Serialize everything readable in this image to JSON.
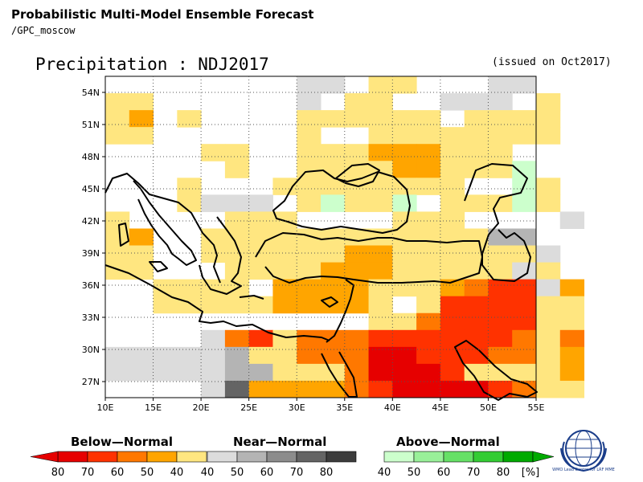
{
  "header": {
    "title": "Probabilistic Multi-Model Ensemble Forecast",
    "subtitle": "/GPC_moscow",
    "map_title": "Precipitation : NDJ2017",
    "issued": "(issued on Oct2017)"
  },
  "axes": {
    "lat_labels": [
      "54N",
      "51N",
      "48N",
      "45N",
      "42N",
      "39N",
      "36N",
      "33N",
      "30N",
      "27N"
    ],
    "lon_labels": [
      "10E",
      "15E",
      "20E",
      "25E",
      "30E",
      "35E",
      "40E",
      "45E",
      "50E",
      "55E"
    ]
  },
  "legend": {
    "below": {
      "title": "Below—Normal",
      "ticks": [
        "80",
        "70",
        "60",
        "50",
        "40"
      ],
      "colors": [
        "#e60000",
        "#ff3200",
        "#ff7800",
        "#ffa500",
        "#ffe680"
      ]
    },
    "near": {
      "title": "Near—Normal",
      "ticks": [
        "40",
        "50",
        "60",
        "70",
        "80"
      ],
      "colors": [
        "#dcdcdc",
        "#b4b4b4",
        "#8c8c8c",
        "#646464",
        "#3c3c3c"
      ]
    },
    "above": {
      "title": "Above—Normal",
      "ticks": [
        "40",
        "50",
        "60",
        "70",
        "80"
      ],
      "colors": [
        "#ccffcc",
        "#99f099",
        "#66e066",
        "#33cc33",
        "#00aa00"
      ]
    },
    "unit": "[%]"
  },
  "logo": {
    "text": "WMO Lead Centre for LRF MME"
  },
  "palette": {
    "Y": "#ffe680",
    "O": "#ffa500",
    "o": "#ff7800",
    "r": "#ff3200",
    "R": "#e60000",
    "g": "#dcdcdc",
    "h": "#b4b4b4",
    "k": "#646464",
    "G": "#ccffcc"
  },
  "chart_data": {
    "type": "heatmap",
    "title": "Precipitation : NDJ2017",
    "lon_range": [
      10,
      55
    ],
    "lat_range": [
      25.5,
      55.5
    ],
    "cell_size_deg": 2.5,
    "categories": {
      "Y": "Below-Normal 40-50%",
      "O": "Below-Normal 50-60%",
      "o": "Below-Normal 60-70%",
      "r": "Below-Normal 70-80%",
      "R": "Below-Normal >80%",
      "g": "Near-Normal 40-50%",
      "h": "Near-Normal 50-60%",
      "k": "Near-Normal 70-80%",
      "G": "Above-Normal 40-50%",
      ".": "no signal"
    },
    "rows_north_to_south": [
      "........gg.YY...gg..",
      "YY......g.YY..ggg.Y.",
      "YO.Y....YYYYYY.YYYY.",
      "YY......Y..YYYYYYYY.",
      "....YY..YYYOOOYYY...",
      ".....Y..YYYYOOYYYG..",
      "...Y...YYYYYYYY..GY.",
      "...Yggg.YGYYG.YYYGY.",
      "Y....YYY....YYY....g",
      "YO..YYYYYYYYYYYYhh..",
      "YY..YYYYYYOOYYYYYYg.",
      "YY...YYYYOOOYYYYYgY.",
      "..YYYY.OOOOYYYOorrgO",
      "..YYYYYOOOOY.YrrrrYY",
      "...........YYorrrrYY",
      "....gorYooorrrrrroYo",
      "ggggghYYoooRRrrrooYO",
      "ggggghhYYYoRRRrYYYYO",
      "....gkOOOOorRRRRroYY"
    ]
  }
}
